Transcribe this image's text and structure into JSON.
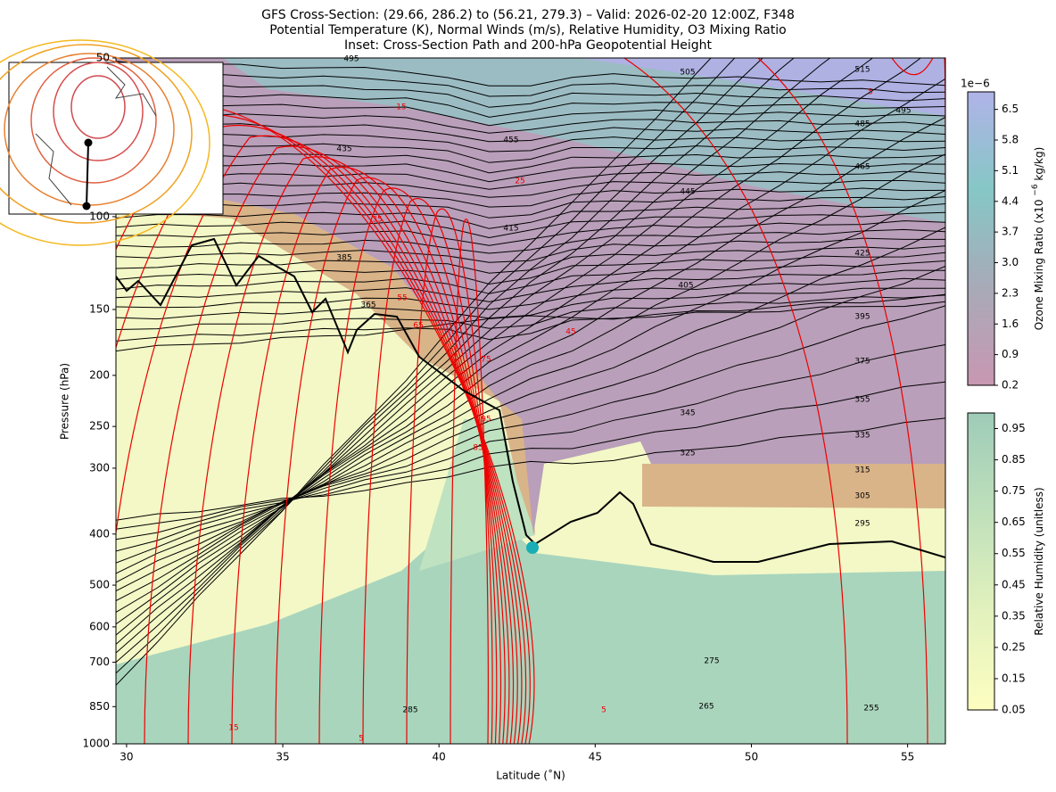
{
  "chart_data": {
    "type": "cross-section",
    "title": [
      "GFS Cross-Section: (29.66, 286.2) to (56.21, 279.3) – Valid: 2026-02-20 12:00Z, F348",
      "Potential Temperature (K), Normal Winds (m/s), Relative Humidity, O3 Mixing Ratio",
      "Inset: Cross-Section Path and 200-hPa Geopotential Height"
    ],
    "xlabel": "Latitude (˚N)",
    "ylabel": "Pressure (hPa)",
    "xlim": [
      29.66,
      56.21
    ],
    "ylim": [
      1000,
      50
    ],
    "log_y": true,
    "xticks": [
      30,
      35,
      40,
      45,
      50,
      55
    ],
    "yticks": [
      50,
      100,
      150,
      200,
      250,
      300,
      400,
      500,
      600,
      700,
      850,
      1000
    ],
    "theta_labels": [
      495,
      505,
      515,
      495,
      485,
      465,
      455,
      445,
      435,
      425,
      415,
      405,
      395,
      385,
      375,
      365,
      355,
      345,
      335,
      325,
      315,
      305,
      295,
      285,
      275,
      265,
      255
    ],
    "wind_labels": [
      5,
      15,
      25,
      35,
      55,
      65,
      45,
      75,
      95,
      85,
      15,
      5,
      5
    ],
    "colorbars": [
      {
        "label": [
          "Ozone Mixing Ratio (x10",
          "−6",
          "kg/kg)"
        ],
        "exponent": "1e−6",
        "ylim": [
          0.2,
          6.9
        ],
        "yticks": [
          0.2,
          0.9,
          1.6,
          2.3,
          {
            "value": 3,
            "label": "3.0"
          },
          3.7,
          4.4,
          5.1,
          5.8,
          6.5
        ],
        "colors": [
          "#c997b2",
          "#a8aab8",
          "#86c7c6",
          "#b0b3e8"
        ]
      },
      {
        "label": [
          "Relative Humidity (unitless)"
        ],
        "ylim": [
          0.05,
          1.0
        ],
        "yticks": [
          0.05,
          0.15,
          0.25,
          0.35,
          0.45,
          0.55,
          0.65,
          0.75,
          0.85,
          0.95
        ],
        "colors": [
          "#fdfec0",
          "#e2f1bd",
          "#bfe0bb",
          "#9ecbb8"
        ]
      }
    ]
  }
}
